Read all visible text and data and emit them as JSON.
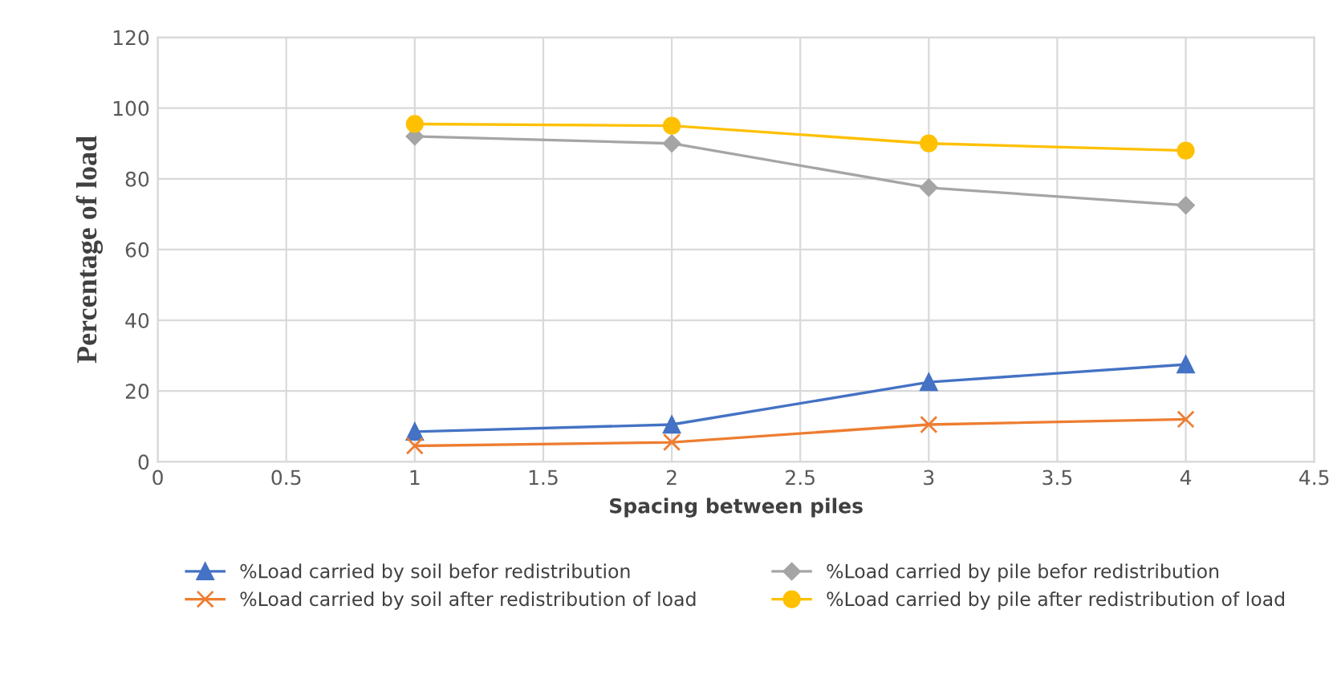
{
  "chart_data": {
    "type": "line",
    "xlabel": "Spacing between piles",
    "ylabel": "Percentage of load",
    "x": [
      1,
      2,
      3,
      4
    ],
    "series": [
      {
        "name": "%Load carried by soil befor redistribution",
        "color": "#4472c4",
        "marker": "triangle",
        "values": [
          8.5,
          10.5,
          22.5,
          27.5
        ]
      },
      {
        "name": "%Load carried by soil after redistribution of load",
        "color": "#ed7d31",
        "marker": "cross",
        "values": [
          4.5,
          5.5,
          10.5,
          12
        ]
      },
      {
        "name": "%Load carried by pile befor redistribution",
        "color": "#a5a5a5",
        "marker": "diamond",
        "values": [
          92,
          90,
          77.5,
          72.5
        ]
      },
      {
        "name": "%Load carried by pile after redistribution of load",
        "color": "#ffc000",
        "marker": "circle",
        "values": [
          95.5,
          95,
          90,
          88
        ]
      }
    ],
    "xlim": [
      0,
      4.5
    ],
    "xticks": [
      0,
      0.5,
      1,
      1.5,
      2,
      2.5,
      3,
      3.5,
      4,
      4.5
    ],
    "ylim": [
      0,
      120
    ],
    "yticks": [
      0,
      20,
      40,
      60,
      80,
      100,
      120
    ],
    "grid": true,
    "legend": "bottom"
  }
}
